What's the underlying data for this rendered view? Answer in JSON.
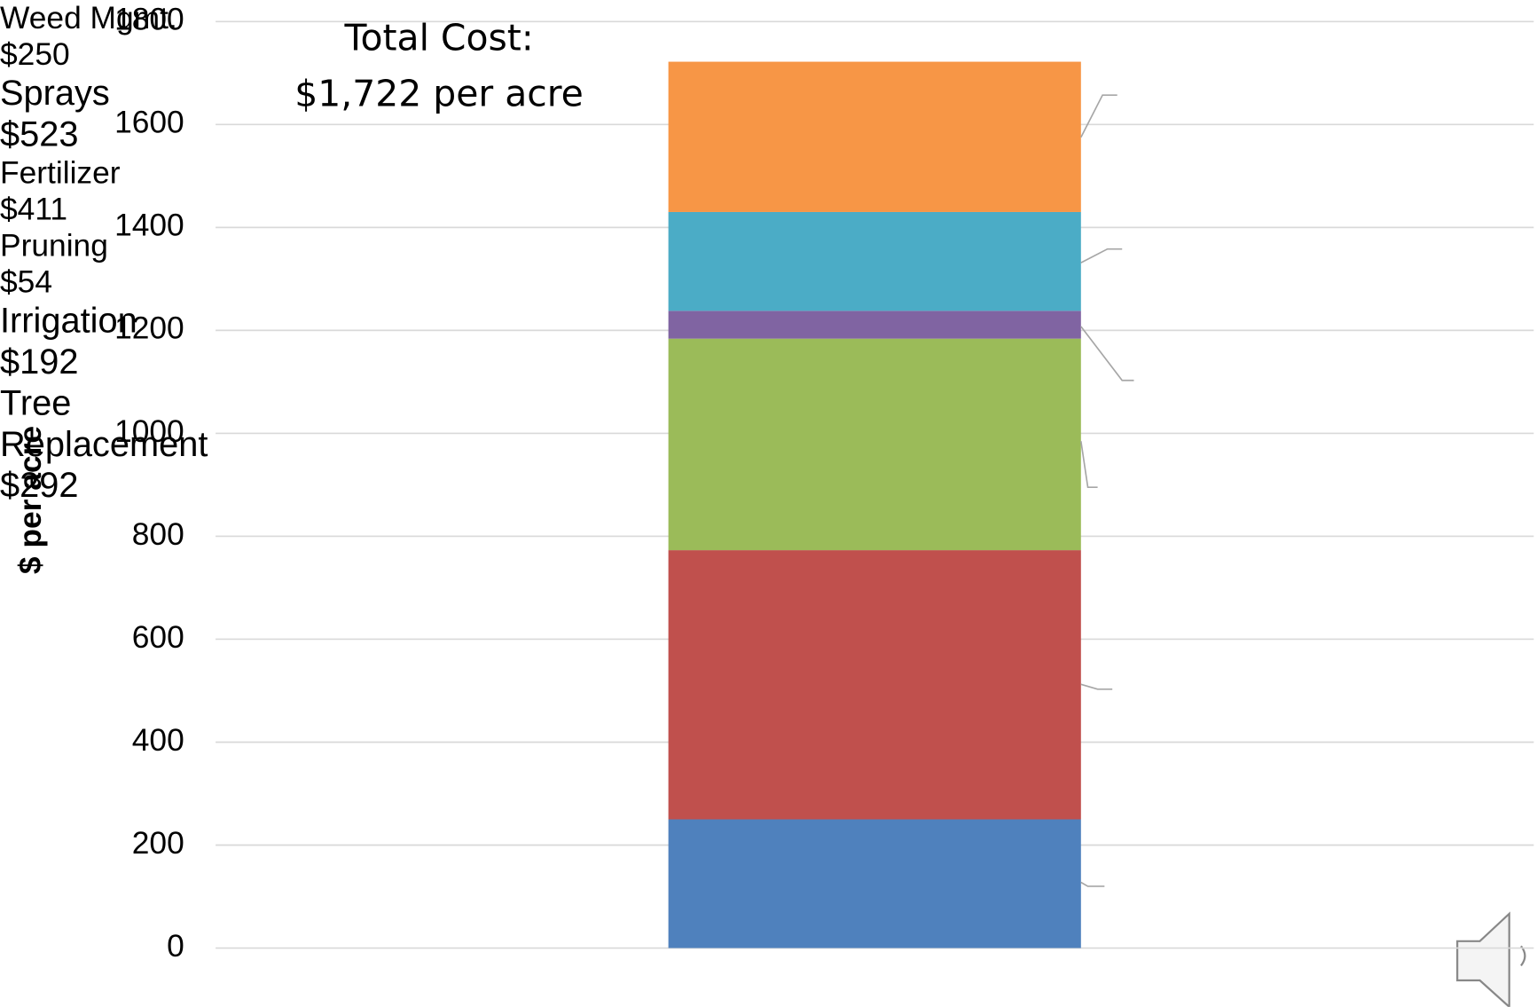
{
  "chart_data": {
    "type": "stacked-bar",
    "annotation": [
      "Total Cost:",
      "$1,722 per acre"
    ],
    "y_label": "$ per acre",
    "categories": [
      null
    ],
    "series": [
      {
        "name": "Weed Mgmt.",
        "color": "#4f81bd",
        "values": [
          250
        ],
        "value_labels": [
          "$250"
        ]
      },
      {
        "name": "Sprays",
        "color": "#c0504d",
        "values": [
          523
        ],
        "value_labels": [
          "$523"
        ]
      },
      {
        "name": "Fertilizer",
        "color": "#9bbb59",
        "values": [
          411
        ],
        "value_labels": [
          "$411"
        ]
      },
      {
        "name": "Pruning",
        "color": "#8064a2",
        "values": [
          54
        ],
        "value_labels": [
          "$54"
        ]
      },
      {
        "name": "Irrigation",
        "color": "#4bacc6",
        "values": [
          192
        ],
        "value_labels": [
          "$192"
        ]
      },
      {
        "name": "Tree Replacement",
        "color": "#f79646",
        "values": [
          292
        ],
        "value_labels": [
          "$292"
        ]
      }
    ],
    "ylim": [
      0,
      1800
    ],
    "yticks": [
      0,
      200,
      400,
      600,
      800,
      1000,
      1200,
      1400,
      1600,
      1800
    ],
    "grid": true
  }
}
